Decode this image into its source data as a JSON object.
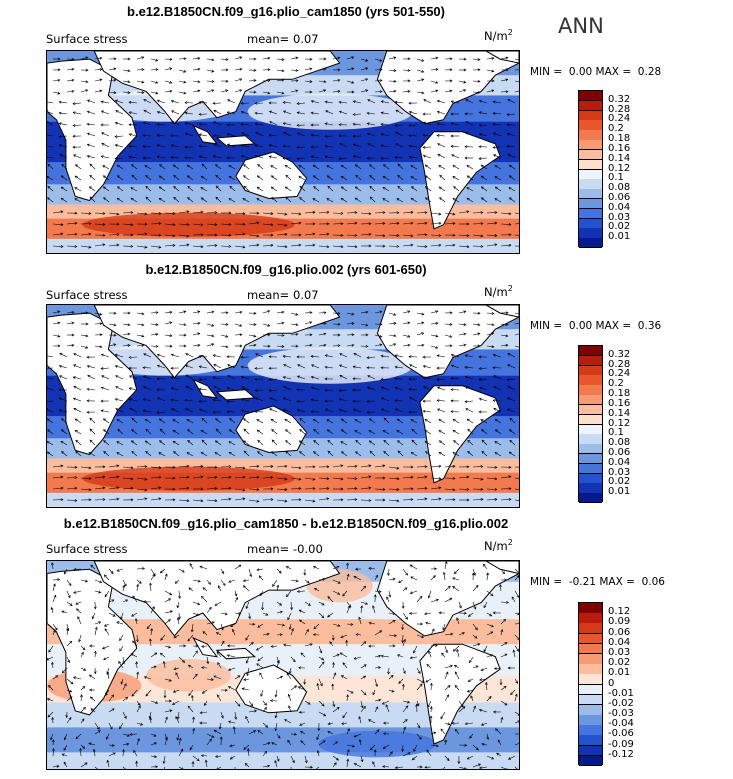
{
  "season": "ANN",
  "panels": [
    {
      "title": "b.e12.B1850CN.f09_g16.plio_cam1850 (yrs 501-550)",
      "variable": "Surface stress",
      "mean_label": "mean=",
      "mean_value": "0.07",
      "units_base": "N/m",
      "units_exp": "2",
      "min_label": "MIN =",
      "min_value": "0.00",
      "max_label": "MAX =",
      "max_value": "0.28",
      "kind": "abs",
      "colorbar_ticks": [
        "0.32",
        "0.28",
        "0.24",
        "0.2",
        "0.18",
        "0.16",
        "0.14",
        "0.12",
        "0.1",
        "0.08",
        "0.06",
        "0.04",
        "0.03",
        "0.02",
        "0.01"
      ],
      "colorbar_colors": [
        "#7f0000",
        "#b81d0c",
        "#d43a18",
        "#e8562b",
        "#f27a4e",
        "#f79b74",
        "#fbbd9d",
        "#fde0cc",
        "#eef4fb",
        "#c8dbf3",
        "#9cbdea",
        "#6c97df",
        "#4574de",
        "#2352cf",
        "#1233b4",
        "#071a8c"
      ]
    },
    {
      "title": "b.e12.B1850CN.f09_g16.plio.002 (yrs 601-650)",
      "variable": "Surface stress",
      "mean_label": "mean=",
      "mean_value": "0.07",
      "units_base": "N/m",
      "units_exp": "2",
      "min_label": "MIN =",
      "min_value": "0.00",
      "max_label": "MAX =",
      "max_value": "0.36",
      "kind": "abs",
      "colorbar_ticks": [
        "0.32",
        "0.28",
        "0.24",
        "0.2",
        "0.18",
        "0.16",
        "0.14",
        "0.12",
        "0.1",
        "0.08",
        "0.06",
        "0.04",
        "0.03",
        "0.02",
        "0.01"
      ],
      "colorbar_colors": [
        "#7f0000",
        "#b81d0c",
        "#d43a18",
        "#e8562b",
        "#f27a4e",
        "#f79b74",
        "#fbbd9d",
        "#fde0cc",
        "#eef4fb",
        "#c8dbf3",
        "#9cbdea",
        "#6c97df",
        "#4574de",
        "#2352cf",
        "#1233b4",
        "#071a8c"
      ]
    },
    {
      "title": "b.e12.B1850CN.f09_g16.plio_cam1850 - b.e12.B1850CN.f09_g16.plio.002",
      "variable": "Surface stress",
      "mean_label": "mean=",
      "mean_value": "-0.00",
      "units_base": "N/m",
      "units_exp": "2",
      "min_label": "MIN =",
      "min_value": "-0.21",
      "max_label": "MAX =",
      "max_value": "0.06",
      "kind": "diff",
      "colorbar_ticks": [
        "0.12",
        "0.09",
        "0.06",
        "0.04",
        "0.03",
        "0.02",
        "0.01",
        "0",
        "-0.01",
        "-0.02",
        "-0.03",
        "-0.04",
        "-0.06",
        "-0.09",
        "-0.12"
      ],
      "colorbar_colors": [
        "#7f0000",
        "#b81d0c",
        "#d43a18",
        "#e8562b",
        "#f27a4e",
        "#f79b74",
        "#fbbd9d",
        "#fde6d8",
        "#e8f0fa",
        "#c8dbf3",
        "#9cbdea",
        "#6c97df",
        "#4574de",
        "#2352cf",
        "#1233b4",
        "#071a8c"
      ]
    }
  ],
  "chart_data": [
    {
      "type": "heatmap",
      "title": "b.e12.B1850CN.f09_g16.plio_cam1850 (yrs 501-550)",
      "subtitle": "Surface stress",
      "units": "N/m^2",
      "mean": 0.07,
      "min": 0.0,
      "max": 0.28,
      "levels": [
        0.01,
        0.02,
        0.03,
        0.04,
        0.06,
        0.08,
        0.1,
        0.12,
        0.14,
        0.16,
        0.18,
        0.2,
        0.24,
        0.28,
        0.32
      ]
    },
    {
      "type": "heatmap",
      "title": "b.e12.B1850CN.f09_g16.plio.002 (yrs 601-650)",
      "subtitle": "Surface stress",
      "units": "N/m^2",
      "mean": 0.07,
      "min": 0.0,
      "max": 0.36,
      "levels": [
        0.01,
        0.02,
        0.03,
        0.04,
        0.06,
        0.08,
        0.1,
        0.12,
        0.14,
        0.16,
        0.18,
        0.2,
        0.24,
        0.28,
        0.32
      ]
    },
    {
      "type": "heatmap",
      "title": "b.e12.B1850CN.f09_g16.plio_cam1850 - b.e12.B1850CN.f09_g16.plio.002",
      "subtitle": "Surface stress",
      "units": "N/m^2",
      "mean": -0.0,
      "min": -0.21,
      "max": 0.06,
      "levels": [
        -0.12,
        -0.09,
        -0.06,
        -0.04,
        -0.03,
        -0.02,
        -0.01,
        0,
        0.01,
        0.02,
        0.03,
        0.04,
        0.06,
        0.09,
        0.12
      ]
    }
  ]
}
